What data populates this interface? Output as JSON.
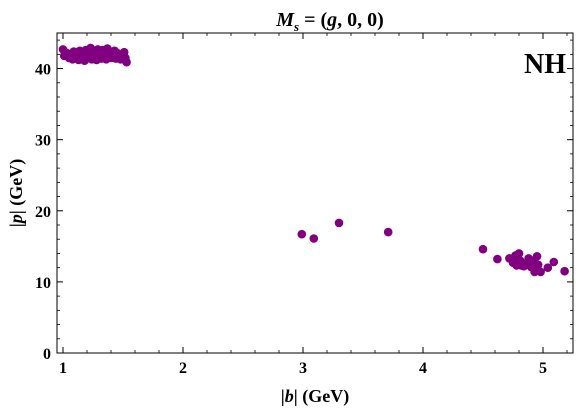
{
  "chart_data": {
    "type": "scatter",
    "title": "M_s = (g, 0, 0)",
    "title_parts": {
      "M": "M",
      "sub": "s",
      "rest_before": " = (",
      "g": "g",
      "rest_after": ", 0, 0)"
    },
    "annotation": "NH",
    "xlabel": {
      "pre": "|",
      "var": "b",
      "post": "| (GeV)"
    },
    "ylabel": {
      "pre": "|",
      "var": "p",
      "post": "| (GeV)"
    },
    "xlim": [
      0.95,
      5.25
    ],
    "ylim": [
      0,
      45
    ],
    "x_ticks": [
      1,
      2,
      3,
      4,
      5
    ],
    "y_ticks": [
      0,
      10,
      20,
      30,
      40
    ],
    "grid": false,
    "legend": "none",
    "marker_color": "#800080",
    "points": [
      [
        1.0,
        42.7
      ],
      [
        1.01,
        41.8
      ],
      [
        1.03,
        42.2
      ],
      [
        1.05,
        41.5
      ],
      [
        1.06,
        42.0
      ],
      [
        1.08,
        41.3
      ],
      [
        1.09,
        42.4
      ],
      [
        1.1,
        41.7
      ],
      [
        1.12,
        42.1
      ],
      [
        1.13,
        41.2
      ],
      [
        1.14,
        42.5
      ],
      [
        1.15,
        41.6
      ],
      [
        1.17,
        42.0
      ],
      [
        1.18,
        41.1
      ],
      [
        1.19,
        42.6
      ],
      [
        1.2,
        41.5
      ],
      [
        1.21,
        42.2
      ],
      [
        1.22,
        41.8
      ],
      [
        1.23,
        42.9
      ],
      [
        1.24,
        41.3
      ],
      [
        1.25,
        42.0
      ],
      [
        1.26,
        41.6
      ],
      [
        1.27,
        42.4
      ],
      [
        1.28,
        41.2
      ],
      [
        1.29,
        42.7
      ],
      [
        1.3,
        41.9
      ],
      [
        1.31,
        42.2
      ],
      [
        1.32,
        41.4
      ],
      [
        1.33,
        42.6
      ],
      [
        1.34,
        41.8
      ],
      [
        1.35,
        42.1
      ],
      [
        1.36,
        41.3
      ],
      [
        1.37,
        42.8
      ],
      [
        1.38,
        41.7
      ],
      [
        1.39,
        42.3
      ],
      [
        1.4,
        41.5
      ],
      [
        1.41,
        42.0
      ],
      [
        1.42,
        41.9
      ],
      [
        1.43,
        42.5
      ],
      [
        1.44,
        41.4
      ],
      [
        1.45,
        42.2
      ],
      [
        1.46,
        41.6
      ],
      [
        1.47,
        42.0
      ],
      [
        1.48,
        41.3
      ],
      [
        1.49,
        41.8
      ],
      [
        1.51,
        42.3
      ],
      [
        1.52,
        41.5
      ],
      [
        1.53,
        40.9
      ],
      [
        2.99,
        16.7
      ],
      [
        3.09,
        16.1
      ],
      [
        3.3,
        18.3
      ],
      [
        3.71,
        17.0
      ],
      [
        4.5,
        14.6
      ],
      [
        4.62,
        13.2
      ],
      [
        4.72,
        13.3
      ],
      [
        4.75,
        12.7
      ],
      [
        4.77,
        13.7
      ],
      [
        4.78,
        12.3
      ],
      [
        4.8,
        14.0
      ],
      [
        4.81,
        13.0
      ],
      [
        4.82,
        12.3
      ],
      [
        4.84,
        12.2
      ],
      [
        4.86,
        12.6
      ],
      [
        4.88,
        13.3
      ],
      [
        4.9,
        12.1
      ],
      [
        4.91,
        12.9
      ],
      [
        4.92,
        13.0
      ],
      [
        4.93,
        11.4
      ],
      [
        4.95,
        13.6
      ],
      [
        4.96,
        12.4
      ],
      [
        4.98,
        11.4
      ],
      [
        5.04,
        12.0
      ],
      [
        5.09,
        12.8
      ],
      [
        5.18,
        11.5
      ]
    ]
  }
}
